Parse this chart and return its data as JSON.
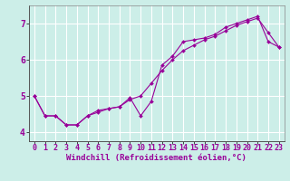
{
  "xlabel": "Windchill (Refroidissement éolien,°C)",
  "background_color": "#cceee8",
  "grid_color": "#aadddd",
  "line_color": "#990099",
  "xlim": [
    -0.5,
    23.5
  ],
  "ylim": [
    3.75,
    7.5
  ],
  "yticks": [
    4,
    5,
    6,
    7
  ],
  "xticks": [
    0,
    1,
    2,
    3,
    4,
    5,
    6,
    7,
    8,
    9,
    10,
    11,
    12,
    13,
    14,
    15,
    16,
    17,
    18,
    19,
    20,
    21,
    22,
    23
  ],
  "line1_x": [
    0,
    1,
    2,
    3,
    4,
    5,
    6,
    7,
    8,
    9,
    10,
    11,
    12,
    13,
    14,
    15,
    16,
    17,
    18,
    19,
    20,
    21,
    22,
    23
  ],
  "line1_y": [
    5.0,
    4.45,
    4.45,
    4.2,
    4.2,
    4.45,
    4.6,
    4.65,
    4.7,
    4.95,
    4.45,
    4.85,
    5.85,
    6.1,
    6.5,
    6.55,
    6.6,
    6.7,
    6.9,
    7.0,
    7.1,
    7.2,
    6.5,
    6.35
  ],
  "line2_x": [
    0,
    1,
    2,
    3,
    4,
    5,
    6,
    7,
    8,
    9,
    10,
    11,
    12,
    13,
    14,
    15,
    16,
    17,
    18,
    19,
    20,
    21,
    22,
    23
  ],
  "line2_y": [
    5.0,
    4.45,
    4.45,
    4.2,
    4.2,
    4.45,
    4.55,
    4.65,
    4.7,
    4.9,
    5.0,
    5.35,
    5.7,
    6.0,
    6.25,
    6.4,
    6.55,
    6.65,
    6.8,
    6.95,
    7.05,
    7.15,
    6.75,
    6.35
  ],
  "xlabel_fontsize": 6.5,
  "tick_fontsize": 6
}
